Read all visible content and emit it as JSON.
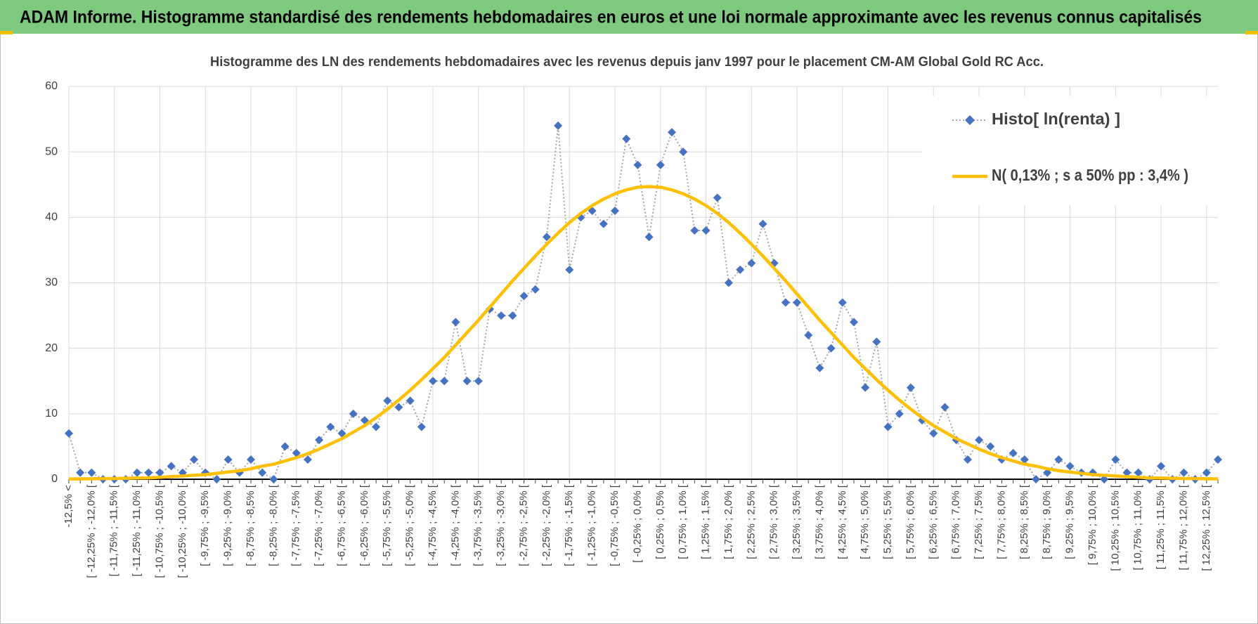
{
  "header": {
    "title": "ADAM Informe. Histogramme standardisé des rendements hebdomadaires en euros et une loi normale approximante avec les revenus connus capitalisés"
  },
  "chart_data": {
    "type": "line",
    "title": "Histogramme des LN des rendements hebdomadaires avec les revenus depuis janv 1997 pour le placement CM-AM Global Gold RC Acc.",
    "categories": [
      "-12,5% <",
      null,
      "[ -12,25% ; -12,0% [",
      null,
      "[ -11,75% ; -11,5% [",
      null,
      "[ -11,25% ; -11,0% [",
      null,
      "[ -10,75% ; -10,5% [",
      null,
      "[ -10,25% ; -10,0% [",
      null,
      "[ -9,75% ; -9,5% [",
      null,
      "[ -9,25% ; -9,0% [",
      null,
      "[ -8,75% ; -8,5% [",
      null,
      "[ -8,25% ; -8,0% [",
      null,
      "[ -7,75% ; -7,5% [",
      null,
      "[ -7,25% ; -7,0% [",
      null,
      "[ -6,75% ; -6,5% [",
      null,
      "[ -6,25% ; -6,0% [",
      null,
      "[ -5,75% ; -5,5% [",
      null,
      "[ -5,25% ; -5,0% [",
      null,
      "[ -4,75% ; -4,5% [",
      null,
      "[ -4,25% ; -4,0% [",
      null,
      "[ -3,75% ; -3,5% [",
      null,
      "[ -3,25% ; -3,0% [",
      null,
      "[ -2,75% ; -2,5% [",
      null,
      "[ -2,25% ; -2,0% [",
      null,
      "[ -1,75% ; -1,5% [",
      null,
      "[ -1,25% ; -1,0% [",
      null,
      "[ -0,75% ; -0,5% [",
      null,
      "[ -0,25% ; 0,0% [",
      null,
      "[ 0,25% ; 0,5% [",
      null,
      "[ 0,75% ; 1,0% [",
      null,
      "[ 1,25% ; 1,5% [",
      null,
      "[ 1,75% ; 2,0% [",
      null,
      "[ 2,25% ; 2,5% [",
      null,
      "[ 2,75% ; 3,0% [",
      null,
      "[ 3,25% ; 3,5% [",
      null,
      "[ 3,75% ; 4,0% [",
      null,
      "[ 4,25% ; 4,5% [",
      null,
      "[ 4,75% ; 5,0% [",
      null,
      "[ 5,25% ; 5,5% [",
      null,
      "[ 5,75% ; 6,0% [",
      null,
      "[ 6,25% ; 6,5% [",
      null,
      "[ 6,75% ; 7,0% [",
      null,
      "[ 7,25% ; 7,5% [",
      null,
      "[ 7,75% ; 8,0% [",
      null,
      "[ 8,25% ; 8,5% [",
      null,
      "[ 8,75% ; 9,0% [",
      null,
      "[ 9,25% ; 9,5% [",
      null,
      "[ 9,75% ; 10,0% [",
      null,
      "[ 10,25% ; 10,5% [",
      null,
      "[ 10,75% ; 11,0% [",
      null,
      "[ 11,25% ; 11,5% [",
      null,
      "[ 11,75% ; 12,0% [",
      null,
      "[ 12,25% ; 12,5% [",
      null
    ],
    "series": [
      {
        "name": "Histo[ ln(renta) ]",
        "color": "#4472c4",
        "values": [
          7,
          1,
          1,
          0,
          0,
          0,
          1,
          1,
          1,
          2,
          1,
          3,
          1,
          0,
          3,
          1,
          3,
          1,
          0,
          5,
          4,
          3,
          6,
          8,
          7,
          10,
          9,
          8,
          12,
          11,
          12,
          8,
          15,
          15,
          24,
          15,
          15,
          26,
          25,
          25,
          28,
          29,
          37,
          54,
          32,
          40,
          41,
          39,
          41,
          52,
          48,
          37,
          48,
          53,
          50,
          38,
          38,
          43,
          30,
          32,
          33,
          39,
          33,
          27,
          27,
          22,
          17,
          20,
          27,
          24,
          14,
          21,
          8,
          10,
          14,
          9,
          7,
          11,
          6,
          3,
          6,
          5,
          3,
          4,
          3,
          0,
          1,
          3,
          2,
          1,
          1,
          0,
          3,
          1,
          1,
          0,
          2,
          0,
          1,
          0,
          1,
          3
        ]
      },
      {
        "name": "N( 0,13% ; s a 50% pp : 3,4% )",
        "color": "#ffc000",
        "values": [
          0.04,
          0.05,
          0.07,
          0.09,
          0.11,
          0.15,
          0.19,
          0.2,
          0.3,
          0.4,
          0.5,
          0.6,
          0.7,
          0.9,
          1.1,
          1.3,
          1.6,
          2.0,
          2.3,
          2.8,
          3.3,
          3.9,
          4.6,
          5.4,
          6.2,
          7.2,
          8.2,
          9.4,
          10.7,
          12.1,
          13.6,
          15.2,
          16.9,
          18.6,
          20.5,
          22.4,
          24.3,
          26.3,
          28.3,
          30.3,
          32.2,
          34.1,
          35.9,
          37.6,
          39.2,
          40.6,
          41.8,
          42.8,
          43.6,
          44.2,
          44.6,
          44.7,
          44.6,
          44.2,
          43.6,
          42.8,
          41.8,
          40.6,
          39.2,
          37.6,
          35.9,
          34.1,
          32.2,
          30.3,
          28.3,
          26.3,
          24.3,
          22.4,
          20.5,
          18.6,
          16.9,
          15.2,
          13.6,
          12.1,
          10.7,
          9.4,
          8.2,
          7.2,
          6.2,
          5.4,
          4.6,
          3.9,
          3.3,
          2.8,
          2.3,
          2.0,
          1.6,
          1.3,
          1.1,
          0.9,
          0.7,
          0.6,
          0.5,
          0.4,
          0.3,
          0.2,
          0.19,
          0.15,
          0.11,
          0.09,
          0.07,
          0.05
        ]
      }
    ],
    "ylim": [
      0,
      60
    ],
    "yticks": [
      0,
      10,
      20,
      30,
      40,
      50,
      60
    ],
    "grid": true,
    "legend": "top-right"
  }
}
